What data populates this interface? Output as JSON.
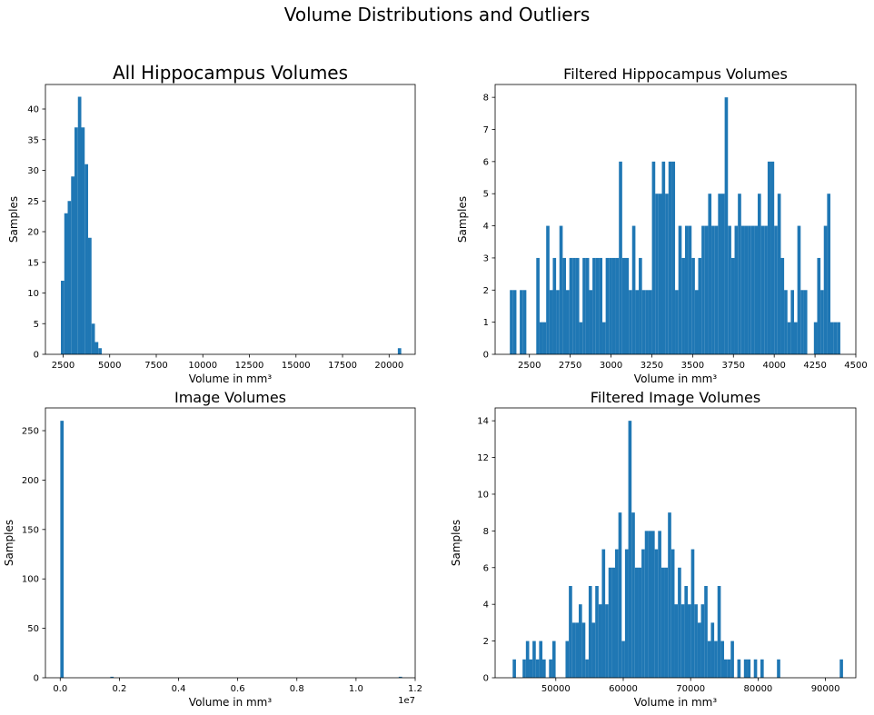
{
  "suptitle": "Volume Distributions and Outliers",
  "colors": {
    "bar": "#1f77b4",
    "axis": "#000000",
    "background": "#ffffff"
  },
  "chart_data": [
    {
      "type": "bar",
      "title": "All Hippocampus Volumes",
      "xlabel": "Volume in mm³",
      "ylabel": "Samples",
      "xlim": [
        1550,
        21400
      ],
      "ylim": [
        0,
        44
      ],
      "xticks": [
        2500,
        5000,
        7500,
        10000,
        12500,
        15000,
        17500,
        20000
      ],
      "xtick_labels": [
        "2500",
        "5000",
        "7500",
        "10000",
        "12500",
        "15000",
        "17500",
        "20000"
      ],
      "yticks": [
        0,
        5,
        10,
        15,
        20,
        25,
        30,
        35,
        40
      ],
      "ytick_labels": [
        "0",
        "5",
        "10",
        "15",
        "20",
        "25",
        "30",
        "35",
        "40"
      ],
      "bin_start": 2380,
      "bin_width": 182.7,
      "values": [
        12,
        23,
        25,
        29,
        37,
        42,
        37,
        31,
        19,
        5,
        2,
        1,
        0,
        0,
        0,
        0,
        0,
        0,
        0,
        0,
        0,
        0,
        0,
        0,
        0,
        0,
        0,
        0,
        0,
        0,
        0,
        0,
        0,
        0,
        0,
        0,
        0,
        0,
        0,
        0,
        0,
        0,
        0,
        0,
        0,
        0,
        0,
        0,
        0,
        0,
        0,
        0,
        0,
        0,
        0,
        0,
        0,
        0,
        0,
        0,
        0,
        0,
        0,
        0,
        0,
        0,
        0,
        0,
        0,
        0,
        0,
        0,
        0,
        0,
        0,
        0,
        0,
        0,
        0,
        0,
        0,
        0,
        0,
        0,
        0,
        0,
        0,
        0,
        0,
        0,
        0,
        0,
        0,
        0,
        0,
        0,
        0,
        0,
        0,
        1
      ]
    },
    {
      "type": "bar",
      "title": "Filtered Hippocampus Volumes",
      "xlabel": "Volume in mm³",
      "ylabel": "Samples",
      "xlim": [
        2290,
        4500
      ],
      "ylim": [
        0,
        8.4
      ],
      "xticks": [
        2500,
        2750,
        3000,
        3250,
        3500,
        3750,
        4000,
        4250,
        4500
      ],
      "xtick_labels": [
        "2500",
        "2750",
        "3000",
        "3250",
        "3500",
        "3750",
        "4000",
        "4250",
        "4500"
      ],
      "yticks": [
        0,
        1,
        2,
        3,
        4,
        5,
        6,
        7,
        8
      ],
      "ytick_labels": [
        "0",
        "1",
        "2",
        "3",
        "4",
        "5",
        "6",
        "7",
        "8"
      ],
      "bin_start": 2380,
      "bin_width": 20.25,
      "values": [
        2,
        2,
        0,
        2,
        2,
        0,
        0,
        0,
        3,
        1,
        1,
        4,
        2,
        3,
        2,
        4,
        3,
        2,
        3,
        3,
        3,
        1,
        3,
        3,
        2,
        3,
        3,
        3,
        1,
        3,
        3,
        3,
        3,
        6,
        3,
        3,
        2,
        4,
        2,
        3,
        2,
        2,
        2,
        6,
        5,
        5,
        6,
        5,
        6,
        6,
        2,
        4,
        3,
        4,
        4,
        3,
        2,
        3,
        4,
        4,
        5,
        4,
        4,
        5,
        5,
        8,
        4,
        3,
        4,
        5,
        4,
        4,
        4,
        4,
        4,
        5,
        4,
        4,
        6,
        6,
        4,
        5,
        3,
        2,
        1,
        2,
        1,
        4,
        2,
        2,
        0,
        0,
        1,
        3,
        2,
        4,
        5,
        1,
        1,
        1
      ]
    },
    {
      "type": "bar",
      "title": "Image Volumes",
      "xlabel": "Volume in mm³",
      "ylabel": "Samples",
      "xlim": [
        -500000,
        12000000
      ],
      "ylim": [
        0,
        273
      ],
      "xticks": [
        0,
        2000000,
        4000000,
        6000000,
        8000000,
        10000000,
        12000000
      ],
      "xtick_labels": [
        "0.0",
        "0.2",
        "0.4",
        "0.6",
        "0.8",
        "1.0",
        "1.2"
      ],
      "offset_label": "1e7",
      "yticks": [
        0,
        50,
        100,
        150,
        200,
        250
      ],
      "ytick_labels": [
        "0",
        "50",
        "100",
        "150",
        "200",
        "250"
      ],
      "bars": [
        {
          "x": 60000,
          "value": 260
        },
        {
          "x": 1750000,
          "value": 1
        },
        {
          "x": 11500000,
          "value": 1
        }
      ],
      "bar_width": 114000
    },
    {
      "type": "bar",
      "title": "Filtered Image Volumes",
      "xlabel": "Volume in mm³",
      "ylabel": "Samples",
      "xlim": [
        41000,
        94500
      ],
      "ylim": [
        0,
        14.7
      ],
      "xticks": [
        50000,
        60000,
        70000,
        80000,
        90000
      ],
      "xtick_labels": [
        "50000",
        "60000",
        "70000",
        "80000",
        "90000"
      ],
      "yticks": [
        0,
        2,
        4,
        6,
        8,
        10,
        12,
        14
      ],
      "ytick_labels": [
        "0",
        "2",
        "4",
        "6",
        "8",
        "10",
        "12",
        "14"
      ],
      "bin_start": 43600,
      "bin_width": 490,
      "values": [
        1,
        0,
        0,
        1,
        2,
        1,
        2,
        1,
        2,
        1,
        0,
        1,
        2,
        0,
        0,
        0,
        2,
        5,
        3,
        3,
        4,
        3,
        1,
        5,
        3,
        5,
        4,
        7,
        4,
        6,
        6,
        7,
        9,
        2,
        7,
        14,
        9,
        6,
        6,
        7,
        8,
        8,
        8,
        7,
        8,
        6,
        6,
        9,
        7,
        4,
        6,
        4,
        5,
        4,
        7,
        4,
        3,
        4,
        5,
        2,
        3,
        2,
        5,
        2,
        1,
        1,
        2,
        0,
        1,
        0,
        1,
        1,
        0,
        1,
        0,
        1,
        0,
        0,
        0,
        0,
        1,
        0,
        0,
        0,
        0,
        0,
        0,
        0,
        0,
        0,
        0,
        0,
        0,
        0,
        0,
        0,
        0,
        0,
        0,
        1
      ]
    }
  ]
}
